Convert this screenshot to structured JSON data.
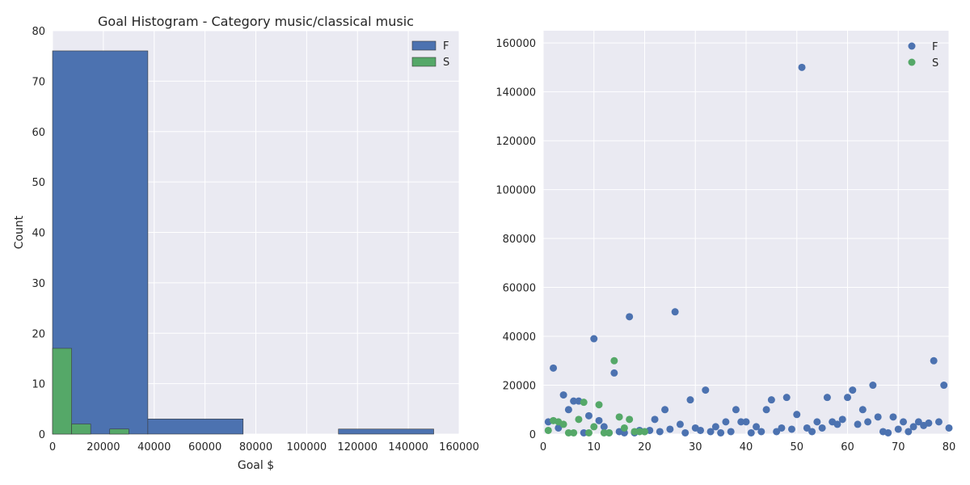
{
  "chart_data": [
    {
      "type": "bar",
      "subtype": "histogram",
      "title": "Goal Histogram - Category music/classical music",
      "xlabel": "Goal $",
      "ylabel": "Count",
      "xlim": [
        0,
        160000
      ],
      "ylim": [
        0,
        80
      ],
      "xticks": [
        0,
        20000,
        40000,
        60000,
        80000,
        100000,
        120000,
        140000,
        160000
      ],
      "xtick_labels": [
        "0",
        "20000",
        "40000",
        "60000",
        "80000",
        "100000",
        "120000",
        "140000",
        "160000"
      ],
      "yticks": [
        0,
        10,
        20,
        30,
        40,
        50,
        60,
        70,
        80
      ],
      "ytick_labels": [
        "0",
        "10",
        "20",
        "30",
        "40",
        "50",
        "60",
        "70",
        "80"
      ],
      "grid": true,
      "legend_position": "top-right",
      "series": [
        {
          "name": "F",
          "color": "#4c72b0",
          "bins": [
            {
              "x0": 0,
              "x1": 37500,
              "count": 76
            },
            {
              "x0": 37500,
              "x1": 75000,
              "count": 3
            },
            {
              "x0": 75000,
              "x1": 112500,
              "count": 0
            },
            {
              "x0": 112500,
              "x1": 150000,
              "count": 1
            }
          ]
        },
        {
          "name": "S",
          "color": "#55a868",
          "bins": [
            {
              "x0": 0,
              "x1": 7500,
              "count": 17
            },
            {
              "x0": 7500,
              "x1": 15000,
              "count": 2
            },
            {
              "x0": 15000,
              "x1": 22500,
              "count": 0
            },
            {
              "x0": 22500,
              "x1": 30000,
              "count": 1
            }
          ]
        }
      ]
    },
    {
      "type": "scatter",
      "title": "",
      "xlabel": "",
      "ylabel": "",
      "xlim": [
        0,
        80
      ],
      "ylim": [
        0,
        165000
      ],
      "xticks": [
        0,
        10,
        20,
        30,
        40,
        50,
        60,
        70,
        80
      ],
      "xtick_labels": [
        "0",
        "10",
        "20",
        "30",
        "40",
        "50",
        "60",
        "70",
        "80"
      ],
      "yticks": [
        0,
        20000,
        40000,
        60000,
        80000,
        100000,
        120000,
        140000,
        160000
      ],
      "ytick_labels": [
        "0",
        "20000",
        "40000",
        "60000",
        "80000",
        "100000",
        "120000",
        "140000",
        "160000"
      ],
      "grid": true,
      "legend_position": "top-right",
      "series": [
        {
          "name": "F",
          "color": "#4c72b0",
          "points": [
            [
              1,
              5000
            ],
            [
              2,
              27000
            ],
            [
              3,
              2500
            ],
            [
              4,
              16000
            ],
            [
              5,
              10000
            ],
            [
              6,
              13500
            ],
            [
              7,
              13500
            ],
            [
              8,
              500
            ],
            [
              9,
              7500
            ],
            [
              10,
              39000
            ],
            [
              11,
              5500
            ],
            [
              12,
              3000
            ],
            [
              13,
              500
            ],
            [
              14,
              25000
            ],
            [
              15,
              1000
            ],
            [
              16,
              500
            ],
            [
              17,
              48000
            ],
            [
              18,
              500
            ],
            [
              19,
              1500
            ],
            [
              20,
              1000
            ],
            [
              21,
              1500
            ],
            [
              22,
              6000
            ],
            [
              23,
              1000
            ],
            [
              24,
              10000
            ],
            [
              25,
              2000
            ],
            [
              26,
              50000
            ],
            [
              27,
              4000
            ],
            [
              28,
              500
            ],
            [
              29,
              14000
            ],
            [
              30,
              2500
            ],
            [
              31,
              1500
            ],
            [
              32,
              18000
            ],
            [
              33,
              1000
            ],
            [
              34,
              3000
            ],
            [
              35,
              500
            ],
            [
              36,
              5000
            ],
            [
              37,
              1000
            ],
            [
              38,
              10000
            ],
            [
              39,
              5000
            ],
            [
              40,
              5000
            ],
            [
              41,
              500
            ],
            [
              42,
              3000
            ],
            [
              43,
              1000
            ],
            [
              44,
              10000
            ],
            [
              45,
              14000
            ],
            [
              46,
              1000
            ],
            [
              47,
              2500
            ],
            [
              48,
              15000
            ],
            [
              49,
              2000
            ],
            [
              50,
              8000
            ],
            [
              51,
              150000
            ],
            [
              52,
              2500
            ],
            [
              53,
              1000
            ],
            [
              54,
              5000
            ],
            [
              55,
              2500
            ],
            [
              56,
              15000
            ],
            [
              57,
              5000
            ],
            [
              58,
              4000
            ],
            [
              59,
              6000
            ],
            [
              60,
              15000
            ],
            [
              61,
              18000
            ],
            [
              62,
              4000
            ],
            [
              63,
              10000
            ],
            [
              64,
              5000
            ],
            [
              65,
              20000
            ],
            [
              66,
              7000
            ],
            [
              67,
              1000
            ],
            [
              68,
              500
            ],
            [
              69,
              7000
            ],
            [
              70,
              2000
            ],
            [
              71,
              5000
            ],
            [
              72,
              1000
            ],
            [
              73,
              3000
            ],
            [
              74,
              5000
            ],
            [
              75,
              3500
            ],
            [
              76,
              4500
            ],
            [
              77,
              30000
            ],
            [
              78,
              5000
            ],
            [
              79,
              20000
            ],
            [
              80,
              2500
            ]
          ]
        },
        {
          "name": "S",
          "color": "#55a868",
          "points": [
            [
              1,
              1500
            ],
            [
              2,
              5500
            ],
            [
              3,
              5000
            ],
            [
              4,
              4000
            ],
            [
              5,
              500
            ],
            [
              6,
              500
            ],
            [
              7,
              6000
            ],
            [
              8,
              13000
            ],
            [
              9,
              500
            ],
            [
              10,
              3000
            ],
            [
              11,
              12000
            ],
            [
              12,
              500
            ],
            [
              13,
              500
            ],
            [
              14,
              30000
            ],
            [
              15,
              7000
            ],
            [
              16,
              2500
            ],
            [
              17,
              6000
            ],
            [
              18,
              1000
            ],
            [
              19,
              1000
            ],
            [
              20,
              1000
            ]
          ]
        }
      ]
    }
  ]
}
